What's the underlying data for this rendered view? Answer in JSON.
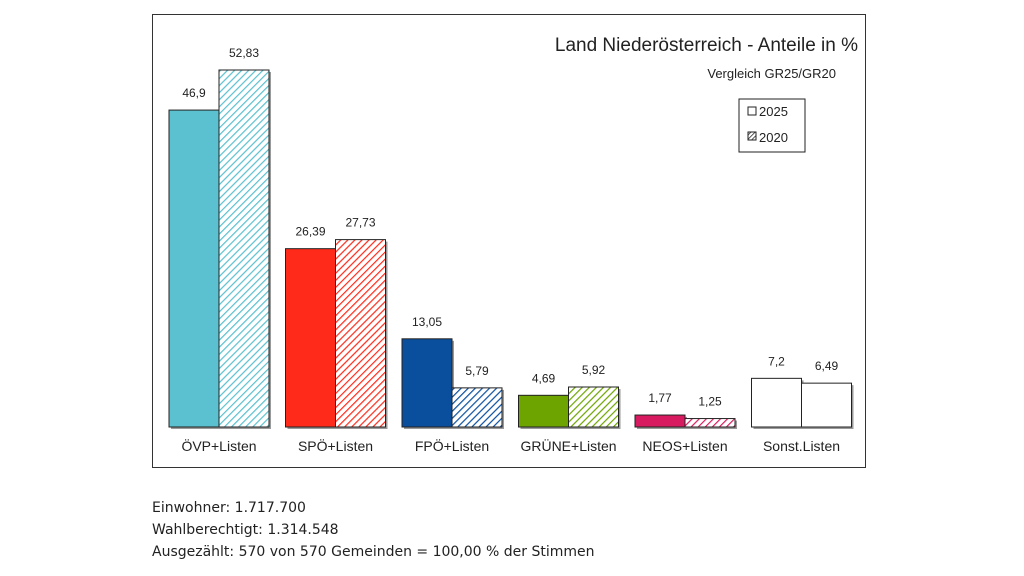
{
  "chart_data": {
    "type": "bar",
    "title": "Land Niederösterreich - Anteile in %",
    "subtitle": "Vergleich GR25/GR20",
    "categories": [
      "ÖVP+Listen",
      "SPÖ+Listen",
      "FPÖ+Listen",
      "GRÜNE+Listen",
      "NEOS+Listen",
      "Sonst.Listen"
    ],
    "series": [
      {
        "name": "2025",
        "values": [
          46.9,
          26.39,
          13.05,
          4.69,
          1.77,
          7.2
        ],
        "labels": [
          "46,9",
          "26,39",
          "13,05",
          "4,69",
          "1,77",
          "7,2"
        ],
        "pattern": "solid"
      },
      {
        "name": "2020",
        "values": [
          52.83,
          27.73,
          5.79,
          5.92,
          1.25,
          6.49
        ],
        "labels": [
          "52,83",
          "27,73",
          "5,79",
          "5,92",
          "1,25",
          "6,49"
        ],
        "pattern": "hatched"
      }
    ],
    "colors": [
      "#5bc0cf",
      "#ff2a1a",
      "#0a4f9e",
      "#6ea400",
      "#d81b60",
      "#ffffff"
    ],
    "ylim": [
      0,
      60
    ],
    "grid": false,
    "legend": "top-right"
  },
  "stats": {
    "einwohner": "Einwohner: 1.717.700",
    "wahlberechtigt": "Wahlberechtigt: 1.314.548",
    "ausgezaehlt": "Ausgezählt: 570 von 570 Gemeinden = 100,00 % der Stimmen"
  }
}
